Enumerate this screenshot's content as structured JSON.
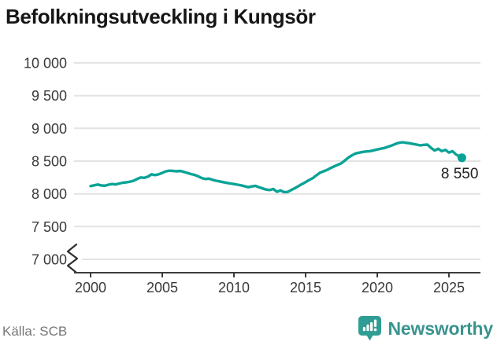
{
  "title": "Befolkningsutveckling i Kungsör",
  "source": {
    "text": "Källa: SCB"
  },
  "brand": {
    "name": "Newsworthy",
    "icon": "bar-chart-pin-icon"
  },
  "colors": {
    "line": "#0aa396",
    "icon": "#2f9d94",
    "wordmark": "#3a948e",
    "grid": "#e3e3e3",
    "axis": "#3d3d3d",
    "tick_text": "#3a3a3a",
    "title_text": "#161616",
    "source_text": "#777777",
    "end_label_text": "#222222",
    "break_glyph": "#2e2e2e"
  },
  "chart_data": {
    "type": "line",
    "title": "Befolkningsutveckling i Kungsör",
    "series_name": "Befolkning i Kungsör",
    "xlabel": "",
    "ylabel": "",
    "grid": true,
    "legend": false,
    "xlim": [
      1998.8,
      2027.2
    ],
    "ylim": [
      7000,
      10000
    ],
    "axis_break_at_y": 7000,
    "last_point_label": "8 550",
    "line_color": "#0aa396",
    "xticks": [
      2000,
      2005,
      2010,
      2015,
      2020,
      2025
    ],
    "xtick_labels": [
      "2000",
      "2005",
      "2010",
      "2015",
      "2020",
      "2025"
    ],
    "yticks": [
      7000,
      7500,
      8000,
      8500,
      9000,
      9500,
      10000
    ],
    "ytick_labels": [
      "7 000",
      "7 500",
      "8 000",
      "8 500",
      "9 000",
      "9 500",
      "10 000"
    ],
    "x": [
      2000.0,
      2000.25,
      2000.5,
      2000.75,
      2001.0,
      2001.25,
      2001.5,
      2001.75,
      2002.0,
      2002.25,
      2002.5,
      2002.75,
      2003.0,
      2003.25,
      2003.5,
      2003.75,
      2004.0,
      2004.25,
      2004.5,
      2004.75,
      2005.0,
      2005.25,
      2005.5,
      2005.75,
      2006.0,
      2006.25,
      2006.5,
      2006.75,
      2007.0,
      2007.25,
      2007.5,
      2007.75,
      2008.0,
      2008.25,
      2008.5,
      2008.75,
      2009.0,
      2009.25,
      2009.5,
      2009.75,
      2010.0,
      2010.25,
      2010.5,
      2010.75,
      2011.0,
      2011.25,
      2011.5,
      2011.75,
      2012.0,
      2012.25,
      2012.5,
      2012.75,
      2013.0,
      2013.25,
      2013.5,
      2013.75,
      2014.0,
      2014.25,
      2014.5,
      2014.75,
      2015.0,
      2015.25,
      2015.5,
      2015.75,
      2016.0,
      2016.25,
      2016.5,
      2016.75,
      2017.0,
      2017.25,
      2017.5,
      2017.75,
      2018.0,
      2018.25,
      2018.5,
      2018.75,
      2019.0,
      2019.25,
      2019.5,
      2019.75,
      2020.0,
      2020.25,
      2020.5,
      2020.75,
      2021.0,
      2021.25,
      2021.5,
      2021.75,
      2022.0,
      2022.25,
      2022.5,
      2022.75,
      2023.0,
      2023.25,
      2023.5,
      2023.75,
      2024.0,
      2024.25,
      2024.5,
      2024.75,
      2025.0,
      2025.25,
      2025.5,
      2025.75,
      2025.9
    ],
    "values": [
      8118,
      8130,
      8142,
      8128,
      8124,
      8140,
      8150,
      8144,
      8158,
      8170,
      8176,
      8186,
      8200,
      8228,
      8250,
      8244,
      8262,
      8298,
      8286,
      8298,
      8320,
      8344,
      8354,
      8350,
      8344,
      8350,
      8336,
      8320,
      8302,
      8290,
      8268,
      8242,
      8226,
      8232,
      8214,
      8200,
      8190,
      8178,
      8168,
      8158,
      8150,
      8140,
      8130,
      8116,
      8102,
      8114,
      8122,
      8100,
      8082,
      8066,
      8058,
      8074,
      8032,
      8052,
      8026,
      8030,
      8058,
      8086,
      8118,
      8150,
      8180,
      8212,
      8240,
      8282,
      8322,
      8344,
      8366,
      8394,
      8420,
      8444,
      8468,
      8512,
      8556,
      8590,
      8618,
      8630,
      8640,
      8648,
      8652,
      8664,
      8678,
      8690,
      8700,
      8718,
      8738,
      8760,
      8778,
      8788,
      8780,
      8772,
      8762,
      8752,
      8740,
      8748,
      8752,
      8700,
      8662,
      8688,
      8652,
      8672,
      8630,
      8652,
      8600,
      8570,
      8550
    ]
  }
}
